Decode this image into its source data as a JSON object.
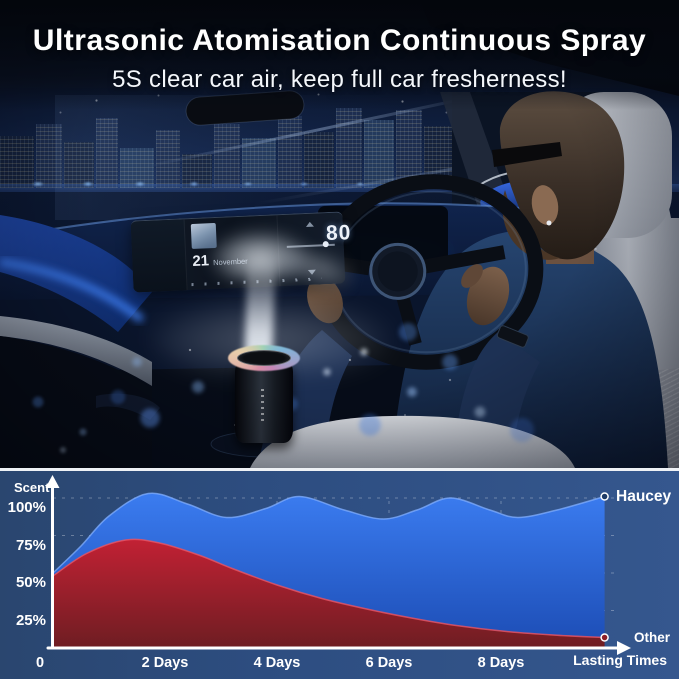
{
  "header": {
    "title": "Ultrasonic Atomisation Continuous Spray",
    "subtitle": "5S clear car air, keep full car fresherness!"
  },
  "photo": {
    "scene": "night car interior, driver at wheel, aroma diffuser spraying mist in center console",
    "screen": {
      "day": "21",
      "month": "November"
    },
    "cluster": {
      "speed": "80"
    }
  },
  "chart_data": {
    "type": "area",
    "title": "",
    "ylabel": "Scent",
    "x_axis_label": "Lasting Times",
    "grid": "dashed",
    "legend_position": "right of series endpoints",
    "xlim_days": [
      0,
      10.2
    ],
    "ylim_percent": [
      0,
      115
    ],
    "x_ticks": [
      {
        "label": "0",
        "day": 0
      },
      {
        "label": "2 Days",
        "day": 2
      },
      {
        "label": "4 Days",
        "day": 4
      },
      {
        "label": "6 Days",
        "day": 6
      },
      {
        "label": "8 Days",
        "day": 8
      }
    ],
    "y_ticks": [
      {
        "label": "100%",
        "value": 100
      },
      {
        "label": "75%",
        "value": 75
      },
      {
        "label": "50%",
        "value": 50
      },
      {
        "label": "25%",
        "value": 25
      }
    ],
    "series": [
      {
        "name": "Haucey",
        "kind": "sustained wavy scent level",
        "color_top": "#3b7cf0",
        "color_bottom": "#1c4cb4",
        "edge_color": "rgba(130,175,255,0.75)",
        "points_day_percent": [
          [
            0,
            50
          ],
          [
            0.5,
            68
          ],
          [
            1,
            88
          ],
          [
            1.7,
            103
          ],
          [
            2.4,
            96
          ],
          [
            3.1,
            87
          ],
          [
            3.8,
            93
          ],
          [
            4.4,
            101
          ],
          [
            5.2,
            92
          ],
          [
            5.9,
            86
          ],
          [
            6.5,
            92
          ],
          [
            7.1,
            100
          ],
          [
            7.8,
            92
          ],
          [
            8.3,
            87
          ],
          [
            9,
            92
          ],
          [
            9.85,
            101
          ]
        ]
      },
      {
        "name": "Other",
        "kind": "decaying scent level",
        "color_top": "#c22134",
        "color_bottom": "#6e1d22",
        "edge_color": "rgba(235,85,100,0.8)",
        "points_day_percent": [
          [
            0,
            48
          ],
          [
            0.6,
            63
          ],
          [
            1.3,
            72
          ],
          [
            1.9,
            70
          ],
          [
            2.6,
            62
          ],
          [
            3.2,
            53
          ],
          [
            4,
            42
          ],
          [
            4.8,
            33
          ],
          [
            5.6,
            26
          ],
          [
            6.4,
            20
          ],
          [
            7.2,
            15
          ],
          [
            8.1,
            11
          ],
          [
            9,
            8.5
          ],
          [
            9.85,
            7
          ]
        ]
      }
    ]
  },
  "colors": {
    "panel_left": "#2a466f",
    "panel_right": "#35578e",
    "divider": "#eef1f5",
    "axis": "#ffffff",
    "grid": "rgba(255,255,255,0.3)",
    "haucey_blue": "#2f6fe8",
    "other_red": "#c02133",
    "title_text": "#ffffff"
  }
}
